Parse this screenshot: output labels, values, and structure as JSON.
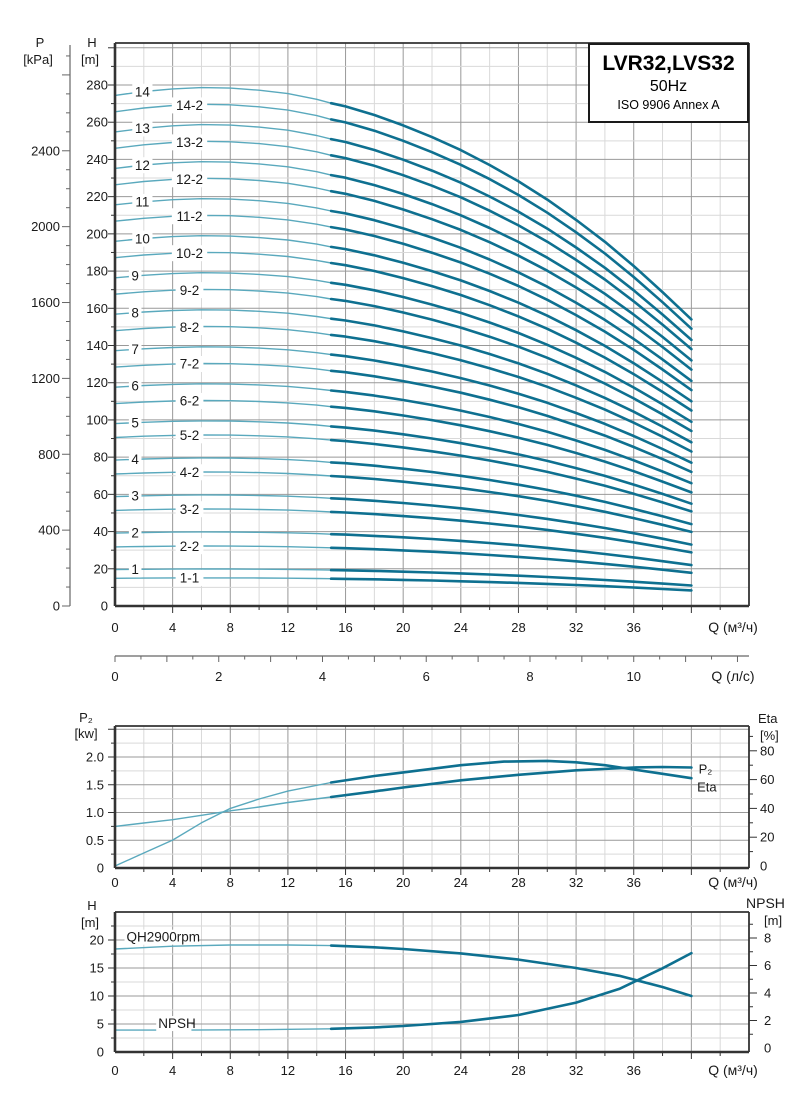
{
  "title_box": {
    "line1": "LVR32,LVS32",
    "line2": "50Hz",
    "line3": "ISO 9906 Annex A"
  },
  "colors": {
    "curve_thin": "#5aa9bd",
    "curve_bold": "#0e7090",
    "grid_minor": "#d9d9d9",
    "grid_major": "#999999",
    "axis": "#333333",
    "ruler": "#666666",
    "text": "#1a1a1a"
  },
  "chart_data": [
    {
      "id": "qh-multistage",
      "type": "line",
      "title": "Multi-stage pump head curves",
      "x_axis": {
        "label": "Q (м³/ч)",
        "min": 0,
        "max": 44,
        "major_step": 4,
        "minor_step": 2,
        "tick_labels": [
          0,
          4,
          8,
          12,
          16,
          20,
          24,
          28,
          32,
          36
        ]
      },
      "x_axis_secondary": {
        "label": "Q (л/с)",
        "min": 0,
        "max": 12.2,
        "major_step": 2,
        "minor_step": 0.5,
        "tick_labels": [
          0,
          2,
          4,
          6,
          8,
          10
        ],
        "m3h_per_ls": 3.6
      },
      "y_axis_pressure": {
        "label": "P",
        "unit": "[kPa]",
        "min": 0,
        "max": 2900,
        "major_step": 400,
        "minor_step": 100,
        "tick_labels": [
          0,
          400,
          800,
          1200,
          1600,
          2000,
          2400
        ],
        "kpa_per_m": 9.81
      },
      "y_axis_head": {
        "label": "H",
        "unit": "[m]",
        "min": 0,
        "max": 302,
        "major_step": 20,
        "minor_step": 10,
        "tick_labels": [
          0,
          20,
          40,
          60,
          80,
          100,
          120,
          140,
          160,
          180,
          200,
          220,
          240,
          260,
          280
        ]
      },
      "bold_from_q": 15,
      "curve_end_q": 40,
      "base_curve": {
        "q": [
          0,
          2,
          4,
          6,
          8,
          10,
          12,
          14,
          15,
          16,
          18,
          20,
          22,
          24,
          26,
          28,
          30,
          32,
          34,
          36,
          38,
          40
        ],
        "h": [
          19.6,
          19.75,
          19.85,
          19.9,
          19.88,
          19.8,
          19.67,
          19.45,
          19.3,
          19.18,
          18.85,
          18.45,
          18.0,
          17.5,
          16.93,
          16.3,
          15.6,
          14.82,
          13.98,
          13.05,
          12.05,
          11.0
        ]
      },
      "curves": [
        {
          "label": "14",
          "factor": 14,
          "label_q": 1.9
        },
        {
          "label": "14-2",
          "factor": 13.55,
          "label_q": 4.2
        },
        {
          "label": "13",
          "factor": 13,
          "label_q": 1.9
        },
        {
          "label": "13-2",
          "factor": 12.55,
          "label_q": 4.2
        },
        {
          "label": "12",
          "factor": 12,
          "label_q": 1.9
        },
        {
          "label": "12-2",
          "factor": 11.55,
          "label_q": 4.2
        },
        {
          "label": "11",
          "factor": 11,
          "label_q": 1.9
        },
        {
          "label": "11-2",
          "factor": 10.55,
          "label_q": 4.2
        },
        {
          "label": "10",
          "factor": 10,
          "label_q": 1.9
        },
        {
          "label": "10-2",
          "factor": 9.55,
          "label_q": 4.2
        },
        {
          "label": "9",
          "factor": 9,
          "label_q": 1.4
        },
        {
          "label": "9-2",
          "factor": 8.55,
          "label_q": 4.2
        },
        {
          "label": "8",
          "factor": 8,
          "label_q": 1.4
        },
        {
          "label": "8-2",
          "factor": 7.55,
          "label_q": 4.2
        },
        {
          "label": "7",
          "factor": 7,
          "label_q": 1.4
        },
        {
          "label": "7-2",
          "factor": 6.55,
          "label_q": 4.2
        },
        {
          "label": "6",
          "factor": 6,
          "label_q": 1.4
        },
        {
          "label": "6-2",
          "factor": 5.55,
          "label_q": 4.2
        },
        {
          "label": "5",
          "factor": 5,
          "label_q": 1.4
        },
        {
          "label": "5-2",
          "factor": 4.62,
          "label_q": 4.2
        },
        {
          "label": "4",
          "factor": 4,
          "label_q": 1.4
        },
        {
          "label": "4-2",
          "factor": 3.62,
          "label_q": 4.2
        },
        {
          "label": "3",
          "factor": 3,
          "label_q": 1.4
        },
        {
          "label": "3-2",
          "factor": 2.62,
          "label_q": 4.2
        },
        {
          "label": "2",
          "factor": 2,
          "label_q": 1.4
        },
        {
          "label": "2-2",
          "factor": 1.62,
          "label_q": 4.2
        },
        {
          "label": "1",
          "factor": 1,
          "label_q": 1.4
        },
        {
          "label": "1-1",
          "factor": 0.76,
          "label_q": 4.2
        }
      ]
    },
    {
      "id": "power-efficiency",
      "type": "line",
      "title": "Shaft power and efficiency",
      "x_axis": {
        "label": "Q (м³/ч)",
        "min": 0,
        "max": 44,
        "major_step": 4,
        "minor_step": 2,
        "tick_labels": [
          0,
          4,
          8,
          12,
          16,
          20,
          24,
          28,
          32,
          36
        ]
      },
      "y_axis_left": {
        "label": "P₂",
        "unit": "[kw]",
        "min": 0,
        "max": 2.56,
        "tick_labels": [
          "0",
          "0.5",
          "1.0",
          "1.5",
          "2.0"
        ],
        "major_step": 0.5,
        "minor_step": 0.25
      },
      "y_axis_right": {
        "label": "Eta",
        "unit": "[%]",
        "min": 0,
        "max": 97,
        "tick_labels": [
          0,
          20,
          40,
          60,
          80
        ],
        "major_step": 20,
        "minor_step": 10
      },
      "bold_from_q": 15,
      "series": [
        {
          "name": "P₂",
          "axis": "left",
          "q": [
            0,
            2,
            4,
            6,
            8,
            10,
            12,
            15,
            18,
            20,
            24,
            28,
            32,
            36,
            38,
            40
          ],
          "v": [
            0.75,
            0.81,
            0.87,
            0.95,
            1.03,
            1.1,
            1.18,
            1.28,
            1.38,
            1.45,
            1.58,
            1.68,
            1.76,
            1.81,
            1.82,
            1.81
          ],
          "label_pos_q": 40.5,
          "label_pos_v": 1.78
        },
        {
          "name": "Eta",
          "axis": "right",
          "q": [
            0,
            2,
            4,
            6,
            8,
            10,
            12,
            15,
            18,
            20,
            24,
            27,
            30,
            32,
            34,
            36,
            38,
            40
          ],
          "v": [
            0,
            9,
            18,
            30,
            40,
            46.5,
            52,
            58,
            62.5,
            65,
            70,
            72.5,
            73,
            72,
            70,
            67,
            64,
            61
          ],
          "label_pos_q": 40.4,
          "label_pos_v": 55
        }
      ]
    },
    {
      "id": "qh-npsh",
      "type": "line",
      "title": "Single stage head and NPSH",
      "x_axis": {
        "label": "Q (м³/ч)",
        "min": 0,
        "max": 44,
        "major_step": 4,
        "minor_step": 2,
        "tick_labels": [
          0,
          4,
          8,
          12,
          16,
          20,
          24,
          28,
          32,
          36
        ]
      },
      "y_axis_left": {
        "label": "H",
        "unit": "[m]",
        "min": 0,
        "max": 25,
        "tick_labels": [
          0,
          5,
          10,
          15,
          20
        ],
        "major_step": 5,
        "minor_step": 2.5
      },
      "y_axis_right": {
        "label": "NPSH",
        "unit": "[m]",
        "min": 0,
        "max": 10,
        "tick_labels": [
          0,
          2,
          4,
          6,
          8
        ],
        "major_step": 2,
        "minor_step": 1
      },
      "bold_from_q": 15,
      "series": [
        {
          "name": "QH2900rpm",
          "axis": "left",
          "q": [
            0,
            4,
            8,
            12,
            15,
            18,
            20,
            24,
            28,
            32,
            35,
            38,
            40
          ],
          "v": [
            18.4,
            18.9,
            19.1,
            19.1,
            19.0,
            18.7,
            18.4,
            17.6,
            16.5,
            15.0,
            13.6,
            11.6,
            10.0
          ],
          "label_pos_q": 0.8,
          "label_pos_v": 19.7
        },
        {
          "name": "NPSH",
          "axis": "right",
          "q": [
            0,
            5,
            10,
            15,
            18,
            20,
            24,
            28,
            32,
            35,
            38,
            40
          ],
          "v": [
            1.3,
            1.3,
            1.33,
            1.4,
            1.5,
            1.6,
            1.9,
            2.4,
            3.3,
            4.3,
            5.8,
            6.9
          ],
          "label_pos_q": 3.0,
          "label_pos_v": 1.45
        }
      ]
    }
  ]
}
